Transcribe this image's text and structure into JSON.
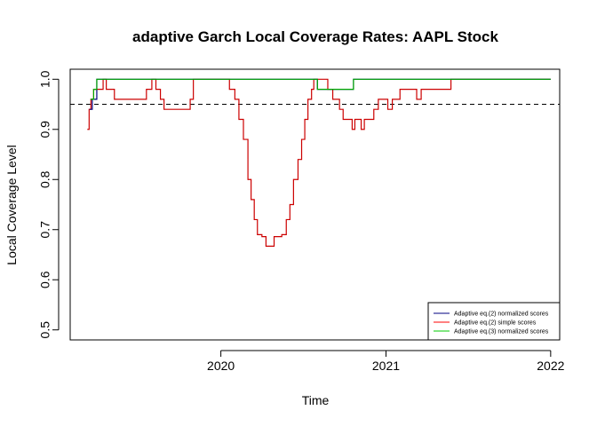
{
  "chart_data": {
    "type": "line",
    "title": "adaptive Garch Local Coverage Rates: AAPL Stock",
    "xlabel": "Time",
    "ylabel": "Local Coverage Level",
    "xlim": [
      "2019-02-01",
      "2022-01-21"
    ],
    "ylim": [
      0.48,
      1.02
    ],
    "x_ticks": [
      {
        "label": "2020",
        "x": "2020-01-01"
      },
      {
        "label": "2021",
        "x": "2021-01-01"
      },
      {
        "label": "2022",
        "x": "2022-01-01"
      }
    ],
    "y_ticks": [
      {
        "label": "0.5",
        "y": 0.5
      },
      {
        "label": "0.6",
        "y": 0.6
      },
      {
        "label": "0.7",
        "y": 0.7
      },
      {
        "label": "0.8",
        "y": 0.8
      },
      {
        "label": "0.9",
        "y": 0.9
      },
      {
        "label": "1.0",
        "y": 1.0
      }
    ],
    "reference_line": {
      "y": 0.95,
      "style": "dashed",
      "color": "#000000"
    },
    "legend": {
      "position": "bottom-right",
      "entries": [
        {
          "label": "Adaptive eq.(2) normalized scores",
          "color": "#000080"
        },
        {
          "label": "Adaptive eq.(2) simple scores",
          "color": "#ff0000"
        },
        {
          "label": "Adaptive eq.(3) normalized scores",
          "color": "#00cc00"
        }
      ]
    },
    "series": [
      {
        "name": "Adaptive eq.(2) simple scores",
        "color": "#cc0000",
        "points": [
          [
            "2019-03-11",
            0.9
          ],
          [
            "2019-03-15",
            0.94
          ],
          [
            "2019-03-19",
            0.96
          ],
          [
            "2019-03-25",
            0.98
          ],
          [
            "2019-04-05",
            0.98
          ],
          [
            "2019-04-15",
            1.0
          ],
          [
            "2019-04-22",
            0.98
          ],
          [
            "2019-05-10",
            0.96
          ],
          [
            "2019-06-20",
            0.96
          ],
          [
            "2019-07-20",
            0.98
          ],
          [
            "2019-08-01",
            1.0
          ],
          [
            "2019-08-10",
            0.98
          ],
          [
            "2019-08-20",
            0.96
          ],
          [
            "2019-08-28",
            0.94
          ],
          [
            "2019-09-10",
            0.94
          ],
          [
            "2019-10-15",
            0.94
          ],
          [
            "2019-10-25",
            0.96
          ],
          [
            "2019-11-01",
            1.0
          ],
          [
            "2020-01-10",
            1.0
          ],
          [
            "2020-01-20",
            0.98
          ],
          [
            "2020-02-01",
            0.96
          ],
          [
            "2020-02-10",
            0.92
          ],
          [
            "2020-02-20",
            0.88
          ],
          [
            "2020-03-01",
            0.8
          ],
          [
            "2020-03-08",
            0.76
          ],
          [
            "2020-03-15",
            0.72
          ],
          [
            "2020-03-22",
            0.69
          ],
          [
            "2020-04-01",
            0.686
          ],
          [
            "2020-04-10",
            0.667
          ],
          [
            "2020-04-20",
            0.667
          ],
          [
            "2020-04-28",
            0.686
          ],
          [
            "2020-05-15",
            0.69
          ],
          [
            "2020-05-25",
            0.72
          ],
          [
            "2020-06-02",
            0.75
          ],
          [
            "2020-06-10",
            0.8
          ],
          [
            "2020-06-20",
            0.84
          ],
          [
            "2020-06-28",
            0.88
          ],
          [
            "2020-07-05",
            0.92
          ],
          [
            "2020-07-12",
            0.96
          ],
          [
            "2020-07-20",
            0.98
          ],
          [
            "2020-07-25",
            1.0
          ],
          [
            "2020-08-01",
            1.0
          ],
          [
            "2020-08-10",
            1.0
          ],
          [
            "2020-08-25",
            0.98
          ],
          [
            "2020-09-05",
            0.96
          ],
          [
            "2020-09-20",
            0.94
          ],
          [
            "2020-09-28",
            0.92
          ],
          [
            "2020-10-12",
            0.92
          ],
          [
            "2020-10-18",
            0.9
          ],
          [
            "2020-10-24",
            0.92
          ],
          [
            "2020-11-01",
            0.92
          ],
          [
            "2020-11-07",
            0.9
          ],
          [
            "2020-11-14",
            0.92
          ],
          [
            "2020-11-25",
            0.92
          ],
          [
            "2020-12-05",
            0.94
          ],
          [
            "2020-12-15",
            0.96
          ],
          [
            "2020-12-28",
            0.96
          ],
          [
            "2021-01-05",
            0.94
          ],
          [
            "2021-01-15",
            0.96
          ],
          [
            "2021-02-01",
            0.98
          ],
          [
            "2021-03-01",
            0.98
          ],
          [
            "2021-03-10",
            0.96
          ],
          [
            "2021-03-20",
            0.98
          ],
          [
            "2021-05-20",
            0.98
          ],
          [
            "2021-05-25",
            1.0
          ],
          [
            "2022-01-01",
            1.0
          ]
        ]
      },
      {
        "name": "Adaptive eq.(2) normalized scores",
        "color": "#000080",
        "points": [
          [
            "2019-03-16",
            0.94
          ],
          [
            "2019-03-22",
            0.96
          ],
          [
            "2019-04-01",
            1.0
          ],
          [
            "2020-08-01",
            1.0
          ],
          [
            "2020-08-02",
            0.98
          ],
          [
            "2020-10-20",
            0.98
          ],
          [
            "2020-10-21",
            1.0
          ],
          [
            "2022-01-01",
            1.0
          ]
        ]
      },
      {
        "name": "Adaptive eq.(3) normalized scores",
        "color": "#00aa00",
        "points": [
          [
            "2019-03-18",
            0.96
          ],
          [
            "2019-03-25",
            0.98
          ],
          [
            "2019-04-01",
            1.0
          ],
          [
            "2020-08-01",
            1.0
          ],
          [
            "2020-08-02",
            0.98
          ],
          [
            "2020-10-20",
            0.98
          ],
          [
            "2020-10-21",
            1.0
          ],
          [
            "2022-01-01",
            1.0
          ]
        ]
      }
    ]
  }
}
